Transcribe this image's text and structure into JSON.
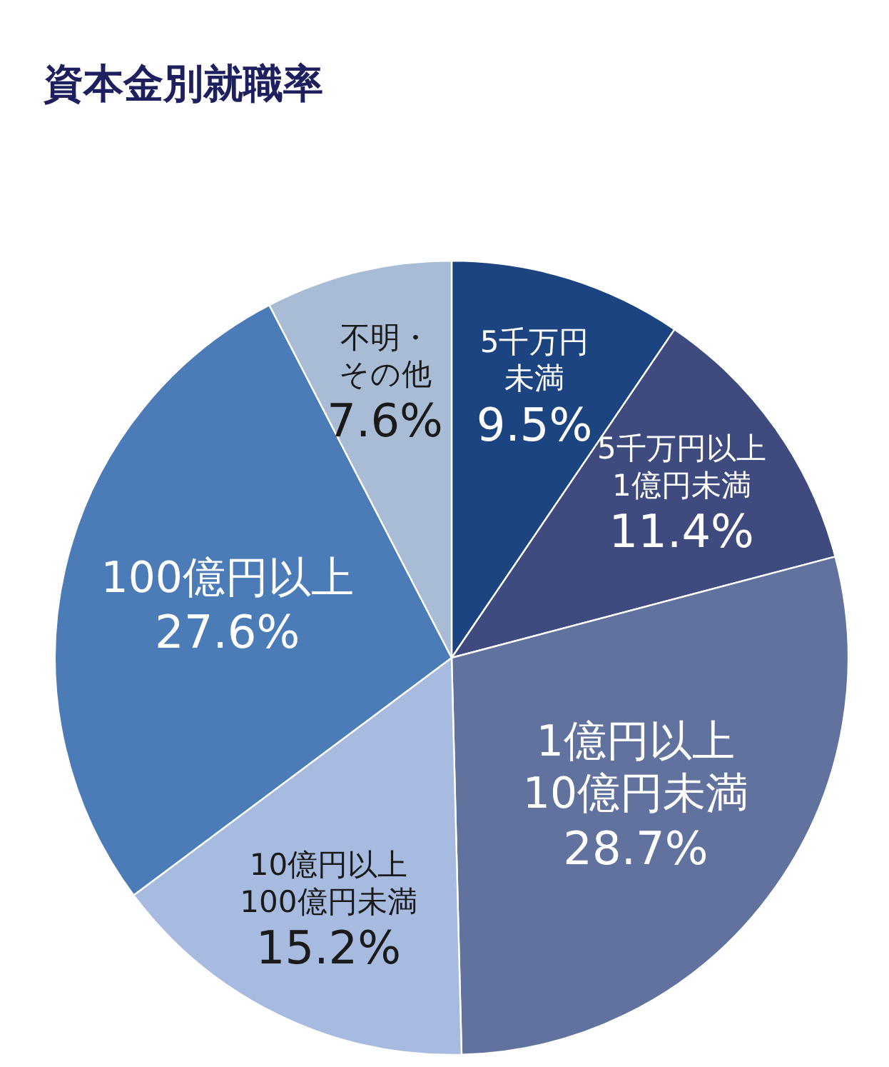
{
  "chart_data": {
    "type": "pie",
    "title": "資本金別就職率",
    "categories": [
      "5千万円未満",
      "5千万円以上1億円未満",
      "1億円以上10億円未満",
      "10億円以上100億円未満",
      "100億円以上",
      "不明・その他"
    ],
    "values": [
      9.5,
      11.4,
      28.7,
      15.2,
      27.6,
      7.6
    ],
    "colors": [
      "#1b4480",
      "#3f4a7f",
      "#62729f",
      "#a7bbe0",
      "#4c7cb7",
      "#a8bcd6"
    ],
    "value_labels": [
      "9.5%",
      "11.4%",
      "28.7%",
      "15.2%",
      "27.6%",
      "7.6%"
    ]
  }
}
